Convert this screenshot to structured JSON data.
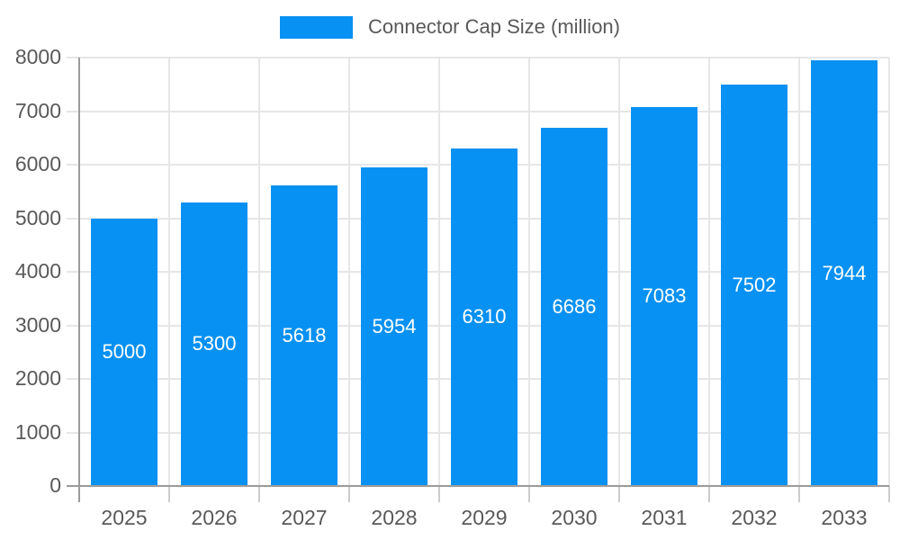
{
  "legend": {
    "label": "Connector Cap Size (million)"
  },
  "chart_data": {
    "type": "bar",
    "title": "Connector Cap Size (million)",
    "categories": [
      "2025",
      "2026",
      "2027",
      "2028",
      "2029",
      "2030",
      "2031",
      "2032",
      "2033"
    ],
    "values": [
      5000,
      5300,
      5618,
      5954,
      6310,
      6686,
      7083,
      7502,
      7944
    ],
    "series_name": "Connector Cap Size (million)",
    "xlabel": "",
    "ylabel": "",
    "ylim": [
      0,
      8000
    ],
    "ytick_step": 1000,
    "yticks": [
      0,
      1000,
      2000,
      3000,
      4000,
      5000,
      6000,
      7000,
      8000
    ],
    "grid": true,
    "legend_position": "top",
    "value_labels": "inside-center",
    "colors": {
      "bar": "#0791f2",
      "bar_label": "#ffffff",
      "axis_text": "#595959",
      "grid_line": "#e6e6e6",
      "tick_line": "#cccccc",
      "axis_line": "#9b9b9b",
      "background": "#ffffff"
    }
  }
}
